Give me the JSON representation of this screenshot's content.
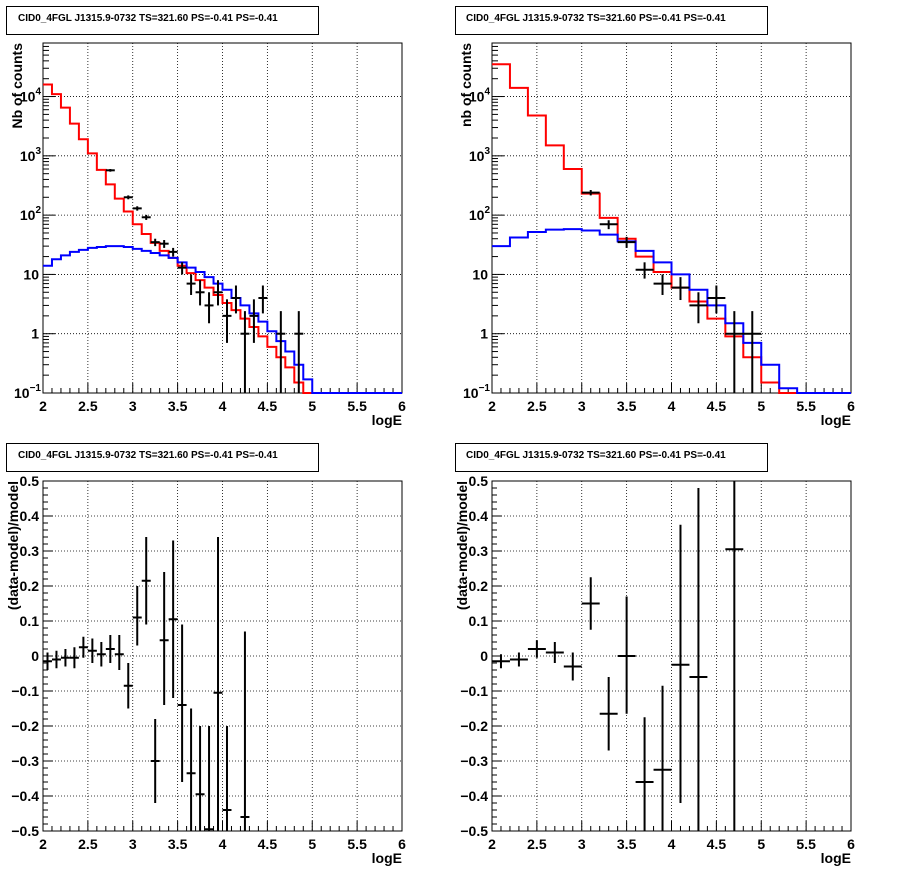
{
  "chart_data": [
    {
      "type": "step-histogram-log",
      "title": "CID0_4FGL J1315.9-0732 TS=321.60 PS=-0.41 PS=-0.41",
      "xlabel": "logE",
      "ylabel": "Nb of counts",
      "xlim": [
        2,
        6
      ],
      "ylim": [
        0.1,
        80000
      ],
      "yscale": "log",
      "grid": true,
      "xticks": [
        "2",
        "2.5",
        "3",
        "3.5",
        "4",
        "4.5",
        "5",
        "5.5",
        "6"
      ],
      "yticks": [
        {
          "v": 0.1,
          "label": "10",
          "sup": "−1"
        },
        {
          "v": 1,
          "label": "1",
          "sup": ""
        },
        {
          "v": 10,
          "label": "10",
          "sup": ""
        },
        {
          "v": 100,
          "label": "10",
          "sup": "2"
        },
        {
          "v": 1000,
          "label": "10",
          "sup": "3"
        },
        {
          "v": 10000,
          "label": "10",
          "sup": "4"
        }
      ],
      "series": [
        {
          "color": "#ff0000",
          "edges": [
            2.0,
            2.1,
            2.2,
            2.3,
            2.4,
            2.5,
            2.6,
            2.7,
            2.8,
            2.9,
            3.0,
            3.1,
            3.2,
            3.3,
            3.4,
            3.5,
            3.6,
            3.7,
            3.8,
            3.9,
            4.0,
            4.1,
            4.2,
            4.3,
            4.4,
            4.5,
            4.6,
            4.7,
            4.8,
            4.9,
            5.0,
            5.1,
            5.2,
            5.3,
            5.4,
            5.5,
            5.6,
            5.7,
            5.8,
            5.9,
            6.0
          ],
          "values": [
            16000,
            11000,
            6500,
            3500,
            1900,
            1100,
            580,
            330,
            190,
            115,
            70,
            48,
            34,
            25,
            19,
            14,
            10.5,
            8,
            6,
            4.5,
            3.3,
            2.5,
            1.8,
            1.3,
            0.9,
            0.6,
            0.4,
            0.27,
            0.15,
            0.1,
            0.1,
            0.1,
            0.1,
            0.1,
            0.1,
            0.1,
            0.1,
            0.1,
            0.1,
            0.1
          ]
        },
        {
          "color": "#0000ff",
          "edges": [
            2.0,
            2.1,
            2.2,
            2.3,
            2.4,
            2.5,
            2.6,
            2.7,
            2.8,
            2.9,
            3.0,
            3.1,
            3.2,
            3.3,
            3.4,
            3.5,
            3.6,
            3.7,
            3.8,
            3.9,
            4.0,
            4.1,
            4.2,
            4.3,
            4.4,
            4.5,
            4.6,
            4.7,
            4.8,
            4.9,
            5.0,
            5.1,
            5.2,
            5.3,
            5.4,
            5.5,
            5.6,
            5.7,
            5.8,
            5.9,
            6.0
          ],
          "values": [
            14,
            18,
            21,
            24,
            26,
            28,
            29,
            30,
            30,
            29,
            27,
            25,
            23,
            21,
            19,
            16,
            13,
            11,
            9,
            7,
            5.5,
            4,
            3,
            2.2,
            1.6,
            1.1,
            0.75,
            0.5,
            0.3,
            0.17,
            0.1,
            0.1,
            0.1,
            0.1,
            0.1,
            0.1,
            0.1,
            0.1,
            0.1,
            0.1
          ]
        }
      ],
      "points": [
        {
          "x": 2.75,
          "y": 570,
          "xerr": 0.05,
          "ylo": 540,
          "yhi": 600
        },
        {
          "x": 2.95,
          "y": 200,
          "xerr": 0.05,
          "ylo": 185,
          "yhi": 215
        },
        {
          "x": 3.05,
          "y": 130,
          "xerr": 0.05,
          "ylo": 119,
          "yhi": 141
        },
        {
          "x": 3.15,
          "y": 92,
          "xerr": 0.05,
          "ylo": 83,
          "yhi": 101
        },
        {
          "x": 3.25,
          "y": 35,
          "xerr": 0.05,
          "ylo": 30,
          "yhi": 40
        },
        {
          "x": 3.35,
          "y": 33,
          "xerr": 0.05,
          "ylo": 28,
          "yhi": 38
        },
        {
          "x": 3.45,
          "y": 24,
          "xerr": 0.05,
          "ylo": 20,
          "yhi": 28
        },
        {
          "x": 3.55,
          "y": 13,
          "xerr": 0.05,
          "ylo": 10,
          "yhi": 16
        },
        {
          "x": 3.65,
          "y": 7,
          "xerr": 0.05,
          "ylo": 4.5,
          "yhi": 10
        },
        {
          "x": 3.75,
          "y": 5,
          "xerr": 0.05,
          "ylo": 3,
          "yhi": 8
        },
        {
          "x": 3.85,
          "y": 3,
          "xerr": 0.05,
          "ylo": 1.5,
          "yhi": 5
        },
        {
          "x": 3.95,
          "y": 5,
          "xerr": 0.05,
          "ylo": 3,
          "yhi": 8
        },
        {
          "x": 4.05,
          "y": 2,
          "xerr": 0.05,
          "ylo": 0.7,
          "yhi": 3.8
        },
        {
          "x": 4.15,
          "y": 4,
          "xerr": 0.05,
          "ylo": 2.2,
          "yhi": 6.5
        },
        {
          "x": 4.25,
          "y": 1,
          "xerr": 0.05,
          "ylo": 0.1,
          "yhi": 2.4
        },
        {
          "x": 4.35,
          "y": 2,
          "xerr": 0.05,
          "ylo": 0.7,
          "yhi": 3.8
        },
        {
          "x": 4.45,
          "y": 4,
          "xerr": 0.05,
          "ylo": 2.2,
          "yhi": 6.5
        },
        {
          "x": 4.65,
          "y": 1,
          "xerr": 0.05,
          "ylo": 0.1,
          "yhi": 2.4
        },
        {
          "x": 4.85,
          "y": 1,
          "xerr": 0.05,
          "ylo": 0.1,
          "yhi": 2.4
        }
      ]
    },
    {
      "type": "step-histogram-log",
      "title": "CID0_4FGL J1315.9-0732 TS=321.60 PS=-0.41 PS=-0.41",
      "xlabel": "logE",
      "ylabel": "nb of counts",
      "xlim": [
        2,
        6
      ],
      "ylim": [
        0.1,
        80000
      ],
      "yscale": "log",
      "grid": true,
      "xticks": [
        "2",
        "2.5",
        "3",
        "3.5",
        "4",
        "4.5",
        "5",
        "5.5",
        "6"
      ],
      "yticks": [
        {
          "v": 0.1,
          "label": "10",
          "sup": "−1"
        },
        {
          "v": 1,
          "label": "1",
          "sup": ""
        },
        {
          "v": 10,
          "label": "10",
          "sup": ""
        },
        {
          "v": 100,
          "label": "10",
          "sup": "2"
        },
        {
          "v": 1000,
          "label": "10",
          "sup": "3"
        },
        {
          "v": 10000,
          "label": "10",
          "sup": "4"
        }
      ],
      "series": [
        {
          "color": "#ff0000",
          "edges": [
            2.0,
            2.2,
            2.4,
            2.6,
            2.8,
            3.0,
            3.2,
            3.4,
            3.6,
            3.8,
            4.0,
            4.2,
            4.4,
            4.6,
            4.8,
            5.0,
            5.2,
            5.4,
            5.6,
            5.8,
            6.0
          ],
          "values": [
            35000,
            14000,
            4800,
            1500,
            600,
            230,
            90,
            40,
            20,
            11,
            6,
            3.5,
            1.8,
            0.9,
            0.4,
            0.15,
            0.1,
            0.1,
            0.1,
            0.1
          ]
        },
        {
          "color": "#0000ff",
          "edges": [
            2.0,
            2.2,
            2.4,
            2.6,
            2.8,
            3.0,
            3.2,
            3.4,
            3.6,
            3.8,
            4.0,
            4.2,
            4.4,
            4.6,
            4.8,
            5.0,
            5.2,
            5.4,
            5.6,
            5.8,
            6.0
          ],
          "values": [
            30,
            42,
            52,
            57,
            58,
            55,
            47,
            36,
            25,
            16,
            10,
            5.5,
            3,
            1.5,
            0.7,
            0.3,
            0.12,
            0.1,
            0.1,
            0.1
          ]
        }
      ],
      "points": [
        {
          "x": 3.1,
          "y": 240,
          "xerr": 0.1,
          "ylo": 215,
          "yhi": 265
        },
        {
          "x": 3.3,
          "y": 70,
          "xerr": 0.1,
          "ylo": 58,
          "yhi": 82
        },
        {
          "x": 3.5,
          "y": 35,
          "xerr": 0.1,
          "ylo": 28,
          "yhi": 43
        },
        {
          "x": 3.7,
          "y": 12,
          "xerr": 0.1,
          "ylo": 8.5,
          "yhi": 16
        },
        {
          "x": 3.9,
          "y": 7,
          "xerr": 0.1,
          "ylo": 4.5,
          "yhi": 10
        },
        {
          "x": 4.1,
          "y": 6,
          "xerr": 0.1,
          "ylo": 3.7,
          "yhi": 9
        },
        {
          "x": 4.3,
          "y": 3,
          "xerr": 0.1,
          "ylo": 1.5,
          "yhi": 5
        },
        {
          "x": 4.5,
          "y": 4,
          "xerr": 0.1,
          "ylo": 2.2,
          "yhi": 6.5
        },
        {
          "x": 4.7,
          "y": 1,
          "xerr": 0.1,
          "ylo": 0.1,
          "yhi": 2.4
        },
        {
          "x": 4.9,
          "y": 1,
          "xerr": 0.1,
          "ylo": 0.1,
          "yhi": 2.4
        }
      ]
    },
    {
      "type": "scatter-errorbars",
      "title": "CID0_4FGL J1315.9-0732 TS=321.60 PS=-0.41 PS=-0.41",
      "xlabel": "logE",
      "ylabel": "(data-model)/model",
      "xlim": [
        2,
        6
      ],
      "ylim": [
        -0.5,
        0.5
      ],
      "grid": true,
      "xticks": [
        "2",
        "2.5",
        "3",
        "3.5",
        "4",
        "4.5",
        "5",
        "5.5",
        "6"
      ],
      "yticks": [
        {
          "v": -0.5,
          "label": "−0.5"
        },
        {
          "v": -0.4,
          "label": "−0.4"
        },
        {
          "v": -0.3,
          "label": "−0.3"
        },
        {
          "v": -0.2,
          "label": "−0.2"
        },
        {
          "v": -0.1,
          "label": "−0.1"
        },
        {
          "v": 0,
          "label": "0"
        },
        {
          "v": 0.1,
          "label": "0.1"
        },
        {
          "v": 0.2,
          "label": "0.2"
        },
        {
          "v": 0.3,
          "label": "0.3"
        },
        {
          "v": 0.4,
          "label": "0.4"
        },
        {
          "v": 0.5,
          "label": "0.5"
        }
      ],
      "points": [
        {
          "x": 2.05,
          "y": -0.015,
          "xerr": 0.05,
          "ylo": -0.04,
          "yhi": 0.01
        },
        {
          "x": 2.15,
          "y": -0.01,
          "xerr": 0.05,
          "ylo": -0.035,
          "yhi": 0.015
        },
        {
          "x": 2.25,
          "y": -0.005,
          "xerr": 0.05,
          "ylo": -0.03,
          "yhi": 0.02
        },
        {
          "x": 2.35,
          "y": -0.005,
          "xerr": 0.05,
          "ylo": -0.035,
          "yhi": 0.025
        },
        {
          "x": 2.45,
          "y": 0.025,
          "xerr": 0.05,
          "ylo": -0.005,
          "yhi": 0.055
        },
        {
          "x": 2.55,
          "y": 0.015,
          "xerr": 0.05,
          "ylo": -0.02,
          "yhi": 0.05
        },
        {
          "x": 2.65,
          "y": 0.005,
          "xerr": 0.05,
          "ylo": -0.03,
          "yhi": 0.04
        },
        {
          "x": 2.75,
          "y": 0.02,
          "xerr": 0.05,
          "ylo": -0.02,
          "yhi": 0.06
        },
        {
          "x": 2.85,
          "y": 0.005,
          "xerr": 0.05,
          "ylo": -0.04,
          "yhi": 0.06
        },
        {
          "x": 2.95,
          "y": -0.085,
          "xerr": 0.05,
          "ylo": -0.15,
          "yhi": -0.02
        },
        {
          "x": 3.05,
          "y": 0.11,
          "xerr": 0.05,
          "ylo": 0.03,
          "yhi": 0.2
        },
        {
          "x": 3.15,
          "y": 0.215,
          "xerr": 0.05,
          "ylo": 0.09,
          "yhi": 0.34
        },
        {
          "x": 3.25,
          "y": -0.3,
          "xerr": 0.05,
          "ylo": -0.42,
          "yhi": -0.18
        },
        {
          "x": 3.35,
          "y": 0.045,
          "xerr": 0.05,
          "ylo": -0.14,
          "yhi": 0.24
        },
        {
          "x": 3.45,
          "y": 0.105,
          "xerr": 0.05,
          "ylo": -0.12,
          "yhi": 0.33
        },
        {
          "x": 3.55,
          "y": -0.14,
          "xerr": 0.05,
          "ylo": -0.36,
          "yhi": 0.09
        },
        {
          "x": 3.65,
          "y": -0.335,
          "xerr": 0.05,
          "ylo": -0.5,
          "yhi": -0.15
        },
        {
          "x": 3.75,
          "y": -0.395,
          "xerr": 0.05,
          "ylo": -0.5,
          "yhi": -0.2
        },
        {
          "x": 3.85,
          "y": -0.495,
          "xerr": 0.05,
          "ylo": -0.5,
          "yhi": -0.2
        },
        {
          "x": 3.95,
          "y": -0.105,
          "xerr": 0.05,
          "ylo": -0.5,
          "yhi": 0.34
        },
        {
          "x": 4.05,
          "y": -0.44,
          "xerr": 0.05,
          "ylo": -0.5,
          "yhi": -0.2
        },
        {
          "x": 4.25,
          "y": -0.46,
          "xerr": 0.05,
          "ylo": -0.5,
          "yhi": 0.07
        }
      ]
    },
    {
      "type": "scatter-errorbars",
      "title": "CID0_4FGL J1315.9-0732 TS=321.60 PS=-0.41 PS=-0.41",
      "xlabel": "logE",
      "ylabel": "(data-model)/model",
      "xlim": [
        2,
        6
      ],
      "ylim": [
        -0.5,
        0.5
      ],
      "grid": true,
      "xticks": [
        "2",
        "2.5",
        "3",
        "3.5",
        "4",
        "4.5",
        "5",
        "5.5",
        "6"
      ],
      "yticks": [
        {
          "v": -0.5,
          "label": "−0.5"
        },
        {
          "v": -0.4,
          "label": "−0.4"
        },
        {
          "v": -0.3,
          "label": "−0.3"
        },
        {
          "v": -0.2,
          "label": "−0.2"
        },
        {
          "v": -0.1,
          "label": "−0.1"
        },
        {
          "v": 0,
          "label": "0"
        },
        {
          "v": 0.1,
          "label": "0.1"
        },
        {
          "v": 0.2,
          "label": "0.2"
        },
        {
          "v": 0.3,
          "label": "0.3"
        },
        {
          "v": 0.4,
          "label": "0.4"
        },
        {
          "v": 0.5,
          "label": "0.5"
        }
      ],
      "points": [
        {
          "x": 2.1,
          "y": -0.015,
          "xerr": 0.1,
          "ylo": -0.035,
          "yhi": 0.005
        },
        {
          "x": 2.3,
          "y": -0.01,
          "xerr": 0.1,
          "ylo": -0.03,
          "yhi": 0.01
        },
        {
          "x": 2.5,
          "y": 0.02,
          "xerr": 0.1,
          "ylo": -0.005,
          "yhi": 0.045
        },
        {
          "x": 2.7,
          "y": 0.01,
          "xerr": 0.1,
          "ylo": -0.02,
          "yhi": 0.04
        },
        {
          "x": 2.9,
          "y": -0.03,
          "xerr": 0.1,
          "ylo": -0.07,
          "yhi": 0.01
        },
        {
          "x": 3.1,
          "y": 0.15,
          "xerr": 0.1,
          "ylo": 0.075,
          "yhi": 0.225
        },
        {
          "x": 3.3,
          "y": -0.165,
          "xerr": 0.1,
          "ylo": -0.27,
          "yhi": -0.06
        },
        {
          "x": 3.5,
          "y": 0.0,
          "xerr": 0.1,
          "ylo": -0.165,
          "yhi": 0.17
        },
        {
          "x": 3.7,
          "y": -0.36,
          "xerr": 0.1,
          "ylo": -0.5,
          "yhi": -0.175
        },
        {
          "x": 3.9,
          "y": -0.325,
          "xerr": 0.1,
          "ylo": -0.5,
          "yhi": -0.085
        },
        {
          "x": 4.1,
          "y": -0.025,
          "xerr": 0.1,
          "ylo": -0.42,
          "yhi": 0.375
        },
        {
          "x": 4.3,
          "y": -0.06,
          "xerr": 0.1,
          "ylo": -0.5,
          "yhi": 0.48
        },
        {
          "x": 4.7,
          "y": 0.305,
          "xerr": 0.1,
          "ylo": -0.5,
          "yhi": 0.5
        }
      ]
    }
  ]
}
